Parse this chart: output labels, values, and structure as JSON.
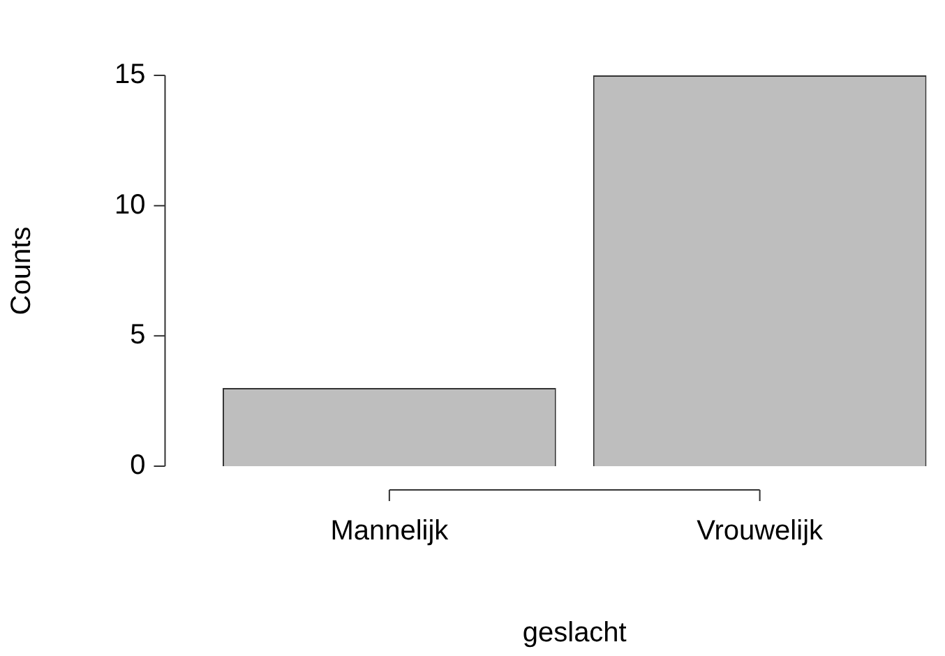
{
  "chart_data": {
    "type": "bar",
    "xlabel": "geslacht",
    "ylabel": "Counts",
    "categories": [
      "Mannelijk",
      "Vrouwelijk"
    ],
    "values": [
      3,
      15
    ],
    "color": "#bebebe",
    "ylim": [
      0,
      15
    ],
    "yticks": [
      0,
      5,
      10,
      15
    ],
    "grid": false,
    "legend": false
  }
}
